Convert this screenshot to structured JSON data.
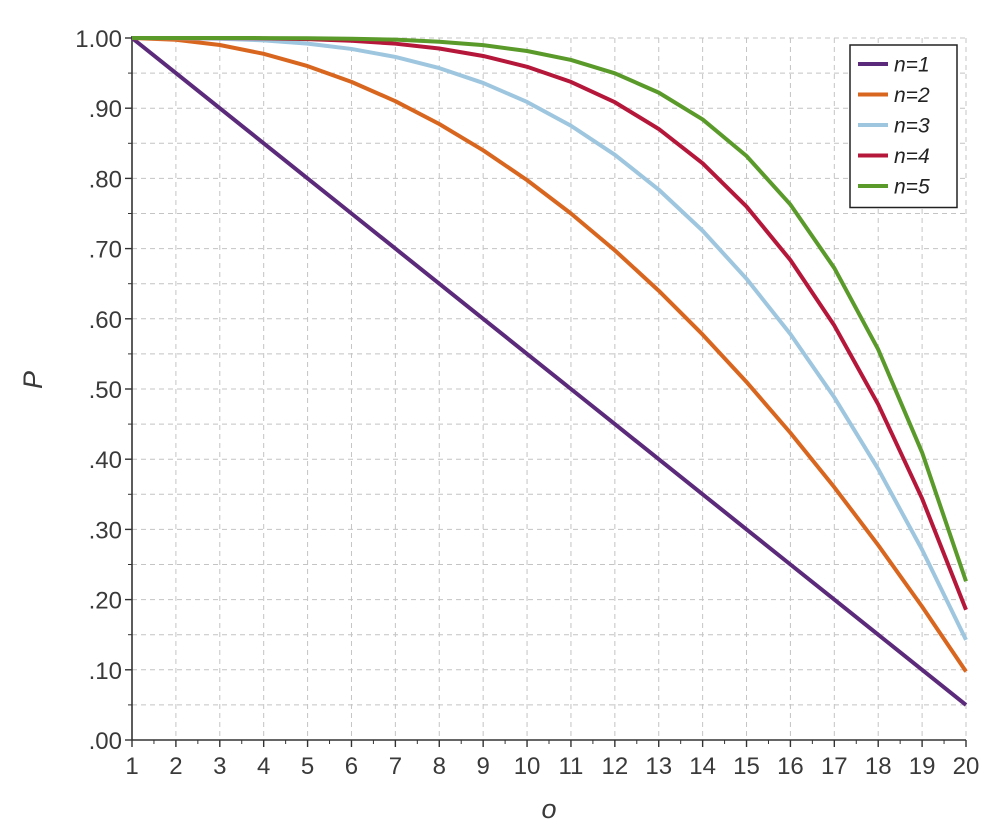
{
  "chart_data": {
    "type": "line",
    "xlabel": "o",
    "ylabel": "P",
    "xlim": [
      1,
      20
    ],
    "ylim": [
      0,
      1
    ],
    "grid": true,
    "legend_position": "top-right",
    "x": [
      1,
      2,
      3,
      4,
      5,
      6,
      7,
      8,
      9,
      10,
      11,
      12,
      13,
      14,
      15,
      16,
      17,
      18,
      19,
      20
    ],
    "x_tick_labels": [
      "1",
      "2",
      "3",
      "4",
      "5",
      "6",
      "7",
      "8",
      "9",
      "10",
      "11",
      "12",
      "13",
      "14",
      "15",
      "16",
      "17",
      "18",
      "19",
      "20"
    ],
    "y_ticks": [
      0,
      0.1,
      0.2,
      0.3,
      0.4,
      0.5,
      0.6,
      0.7,
      0.8,
      0.9,
      1.0
    ],
    "y_tick_labels": [
      ".00",
      ".10",
      ".20",
      ".30",
      ".40",
      ".50",
      ".60",
      ".70",
      ".80",
      ".90",
      "1.00"
    ],
    "series": [
      {
        "name": "n=1",
        "color": "#5b2a7a",
        "values": [
          1.0,
          0.95,
          0.9,
          0.85,
          0.8,
          0.75,
          0.7,
          0.65,
          0.6,
          0.55,
          0.5,
          0.45,
          0.4,
          0.35,
          0.3,
          0.25,
          0.2,
          0.15,
          0.1,
          0.05
        ]
      },
      {
        "name": "n=2",
        "color": "#d9661f",
        "values": [
          1.0,
          0.9975,
          0.99,
          0.9775,
          0.96,
          0.9375,
          0.91,
          0.8775,
          0.84,
          0.7975,
          0.75,
          0.6975,
          0.64,
          0.5775,
          0.51,
          0.4375,
          0.36,
          0.2775,
          0.19,
          0.0975
        ]
      },
      {
        "name": "n=3",
        "color": "#9ec6df",
        "values": [
          1.0,
          0.9999,
          0.999,
          0.9966,
          0.992,
          0.9844,
          0.973,
          0.9571,
          0.936,
          0.9089,
          0.875,
          0.8336,
          0.784,
          0.7254,
          0.657,
          0.5781,
          0.488,
          0.3859,
          0.271,
          0.1426
        ]
      },
      {
        "name": "n=4",
        "color": "#b5173a",
        "values": [
          1.0,
          1.0,
          0.9999,
          0.9995,
          0.9984,
          0.9961,
          0.9919,
          0.985,
          0.9744,
          0.959,
          0.9375,
          0.9085,
          0.8704,
          0.8215,
          0.7599,
          0.6836,
          0.5904,
          0.478,
          0.3439,
          0.1855
        ]
      },
      {
        "name": "n=5",
        "color": "#5a9a2a",
        "values": [
          1.0,
          1.0,
          1.0,
          0.9999,
          0.9997,
          0.999,
          0.9976,
          0.9947,
          0.9898,
          0.9815,
          0.9688,
          0.9497,
          0.9222,
          0.884,
          0.8319,
          0.7627,
          0.6723,
          0.5563,
          0.4095,
          0.2262
        ]
      }
    ]
  }
}
